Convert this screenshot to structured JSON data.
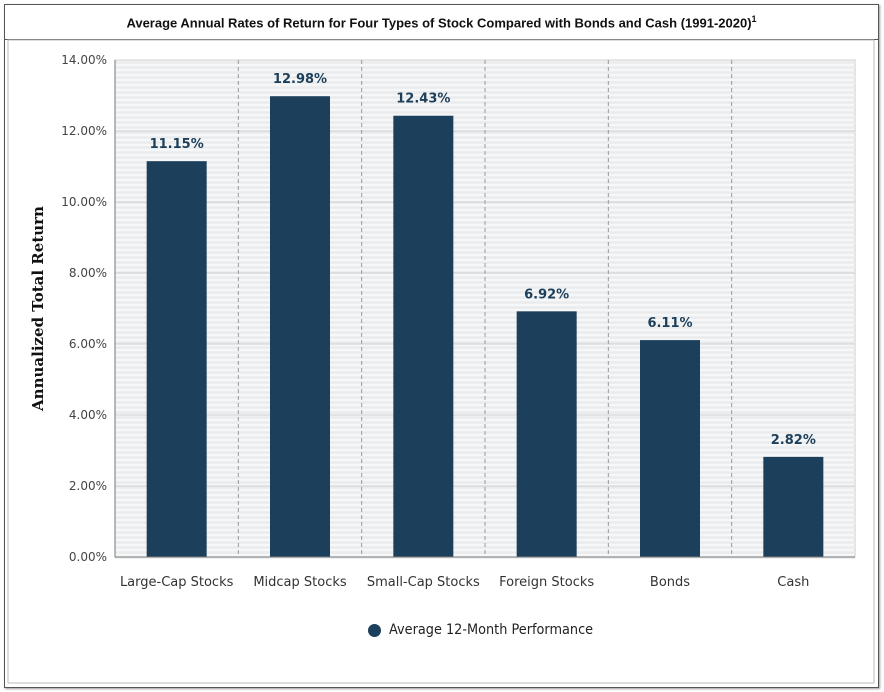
{
  "chart_data": {
    "type": "bar",
    "title": "Average Annual Rates of Return for Four Types of Stock Compared with Bonds and Cash (1991-2020)",
    "title_superscript": "1",
    "xlabel": "",
    "ylabel": "Annualized Total Return",
    "ylim": [
      0,
      14
    ],
    "yticks": [
      0,
      2,
      4,
      6,
      8,
      10,
      12,
      14
    ],
    "ytick_labels": [
      "0.00%",
      "2.00%",
      "4.00%",
      "6.00%",
      "8.00%",
      "10.00%",
      "12.00%",
      "14.00%"
    ],
    "categories": [
      "Large-Cap Stocks",
      "Midcap Stocks",
      "Small-Cap Stocks",
      "Foreign Stocks",
      "Bonds",
      "Cash"
    ],
    "series": [
      {
        "name": "Average 12-Month Performance",
        "values": [
          11.15,
          12.98,
          12.43,
          6.92,
          6.11,
          2.82
        ],
        "labels": [
          "11.15%",
          "12.98%",
          "12.43%",
          "6.92%",
          "6.11%",
          "2.82%"
        ],
        "color": "#1c3f5b"
      }
    ],
    "legend_position": "bottom-center"
  }
}
